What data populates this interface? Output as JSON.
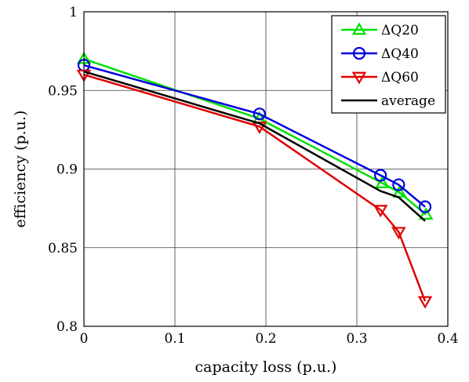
{
  "chart_data": {
    "type": "line",
    "xlabel": "capacity loss (p.u.)",
    "ylabel": "efficiency (p.u.)",
    "xlim": [
      0,
      0.4
    ],
    "ylim": [
      0.8,
      1.0
    ],
    "xticks": [
      0,
      0.1,
      0.2,
      0.3,
      0.4
    ],
    "yticks": [
      0.8,
      0.85,
      0.9,
      0.95,
      1.0
    ],
    "xtick_labels": [
      "0",
      "0.1",
      "0.2",
      "0.3",
      "0.4"
    ],
    "ytick_labels": [
      "0.8",
      "0.85",
      "0.9",
      "0.95",
      "1"
    ],
    "grid": true,
    "legend_position": "top-right",
    "series": [
      {
        "name": "ΔQ20",
        "color": "#00e000",
        "marker": "triangle-up",
        "x": [
          0,
          0.193,
          0.328,
          0.347,
          0.376
        ],
        "y": [
          0.97,
          0.932,
          0.891,
          0.885,
          0.871
        ]
      },
      {
        "name": "ΔQ40",
        "color": "#0000e0",
        "marker": "circle",
        "x": [
          0,
          0.193,
          0.326,
          0.346,
          0.375
        ],
        "y": [
          0.966,
          0.935,
          0.896,
          0.89,
          0.876
        ]
      },
      {
        "name": "ΔQ60",
        "color": "#e00000",
        "marker": "triangle-down",
        "x": [
          0,
          0.193,
          0.326,
          0.346,
          0.375
        ],
        "y": [
          0.96,
          0.927,
          0.874,
          0.86,
          0.816
        ]
      },
      {
        "name": "average",
        "color": "#000000",
        "marker": "none",
        "x": [
          0,
          0.193,
          0.326,
          0.346,
          0.375
        ],
        "y": [
          0.962,
          0.929,
          0.886,
          0.882,
          0.867
        ]
      }
    ]
  }
}
